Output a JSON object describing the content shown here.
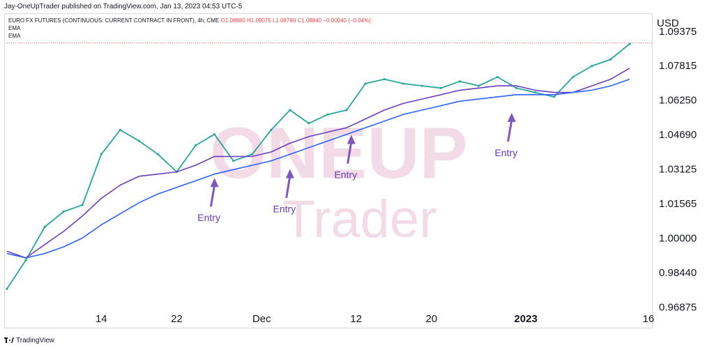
{
  "header": {
    "published": "Jay-OneUpTrader published on TradingView.com, Jan 13, 2023 04:53 UTC-5",
    "symbol_line": "EURO FX FUTURES (CONTINUOUS: CURRENT CONTRACT IN FRONT), 4h, CME",
    "ohlc": "O1.08880  H1.09075  L1.08760  C1.08840  −0.00040 (−0.04%)",
    "indicators": [
      "EMA",
      "EMA"
    ]
  },
  "watermark": {
    "line1": "ONEUP",
    "line2": "Trader"
  },
  "annotations": [
    {
      "label": "Entry",
      "x": 22,
      "y": 1.0285
    },
    {
      "label": "Entry",
      "x": 30,
      "y": 1.0325
    },
    {
      "label": "Entry",
      "x": 36.5,
      "y": 1.048
    },
    {
      "label": "Entry",
      "x": 53.5,
      "y": 1.058
    }
  ],
  "chart_data": {
    "type": "line",
    "title": "EURO FX FUTURES, 4h",
    "xlabel": "",
    "ylabel": "USD",
    "ylim": [
      0.96,
      1.1
    ],
    "xlim": [
      0,
      68
    ],
    "y_ticks": [
      "1.09375",
      "1.07815",
      "1.06250",
      "1.04690",
      "1.03125",
      "1.01565",
      "1.00000",
      "0.98440",
      "0.96875"
    ],
    "x_ticks": [
      {
        "label": "14",
        "x": 10
      },
      {
        "label": "22",
        "x": 18
      },
      {
        "label": "Dec",
        "x": 27
      },
      {
        "label": "12",
        "x": 37
      },
      {
        "label": "20",
        "x": 45
      },
      {
        "label": "2023",
        "x": 55
      },
      {
        "label": "16",
        "x": 68
      }
    ],
    "last_price": 1.0884,
    "grid": false,
    "series": [
      {
        "color": "#26a69a",
        "x": [
          0,
          2,
          4,
          6,
          8,
          10,
          12,
          14,
          16,
          18,
          20,
          22,
          24,
          26,
          28,
          30,
          32,
          34,
          36,
          38,
          40,
          42,
          44,
          46,
          48,
          50,
          52,
          54,
          56,
          58,
          60,
          62,
          64,
          66
        ],
        "values": [
          0.977,
          0.99,
          1.005,
          1.012,
          1.015,
          1.038,
          1.049,
          1.044,
          1.038,
          1.03,
          1.042,
          1.047,
          1.035,
          1.038,
          1.049,
          1.058,
          1.052,
          1.056,
          1.058,
          1.07,
          1.072,
          1.07,
          1.069,
          1.068,
          1.071,
          1.069,
          1.073,
          1.068,
          1.066,
          1.064,
          1.073,
          1.078,
          1.081,
          1.088
        ]
      },
      {
        "name": "EMA",
        "color": "#6a3ebf",
        "x": [
          0,
          2,
          4,
          6,
          8,
          10,
          12,
          14,
          16,
          18,
          20,
          22,
          24,
          26,
          28,
          30,
          32,
          34,
          36,
          38,
          40,
          42,
          44,
          46,
          48,
          50,
          52,
          54,
          56,
          58,
          60,
          62,
          64,
          66
        ],
        "values": [
          0.994,
          0.991,
          0.997,
          1.003,
          1.01,
          1.018,
          1.024,
          1.028,
          1.029,
          1.03,
          1.033,
          1.037,
          1.037,
          1.037,
          1.039,
          1.043,
          1.046,
          1.048,
          1.05,
          1.054,
          1.058,
          1.061,
          1.063,
          1.065,
          1.067,
          1.068,
          1.069,
          1.069,
          1.067,
          1.066,
          1.066,
          1.069,
          1.072,
          1.077
        ]
      },
      {
        "name": "EMA",
        "color": "#2962ff",
        "x": [
          0,
          2,
          4,
          6,
          8,
          10,
          12,
          14,
          16,
          18,
          20,
          22,
          24,
          26,
          28,
          30,
          32,
          34,
          36,
          38,
          40,
          42,
          44,
          46,
          48,
          50,
          52,
          54,
          56,
          58,
          60,
          62,
          64,
          66
        ],
        "values": [
          0.993,
          0.991,
          0.993,
          0.996,
          1.0,
          1.006,
          1.011,
          1.016,
          1.02,
          1.023,
          1.026,
          1.029,
          1.031,
          1.033,
          1.035,
          1.038,
          1.041,
          1.044,
          1.047,
          1.05,
          1.053,
          1.056,
          1.058,
          1.06,
          1.062,
          1.063,
          1.064,
          1.065,
          1.065,
          1.065,
          1.066,
          1.067,
          1.069,
          1.072
        ]
      }
    ]
  }
}
